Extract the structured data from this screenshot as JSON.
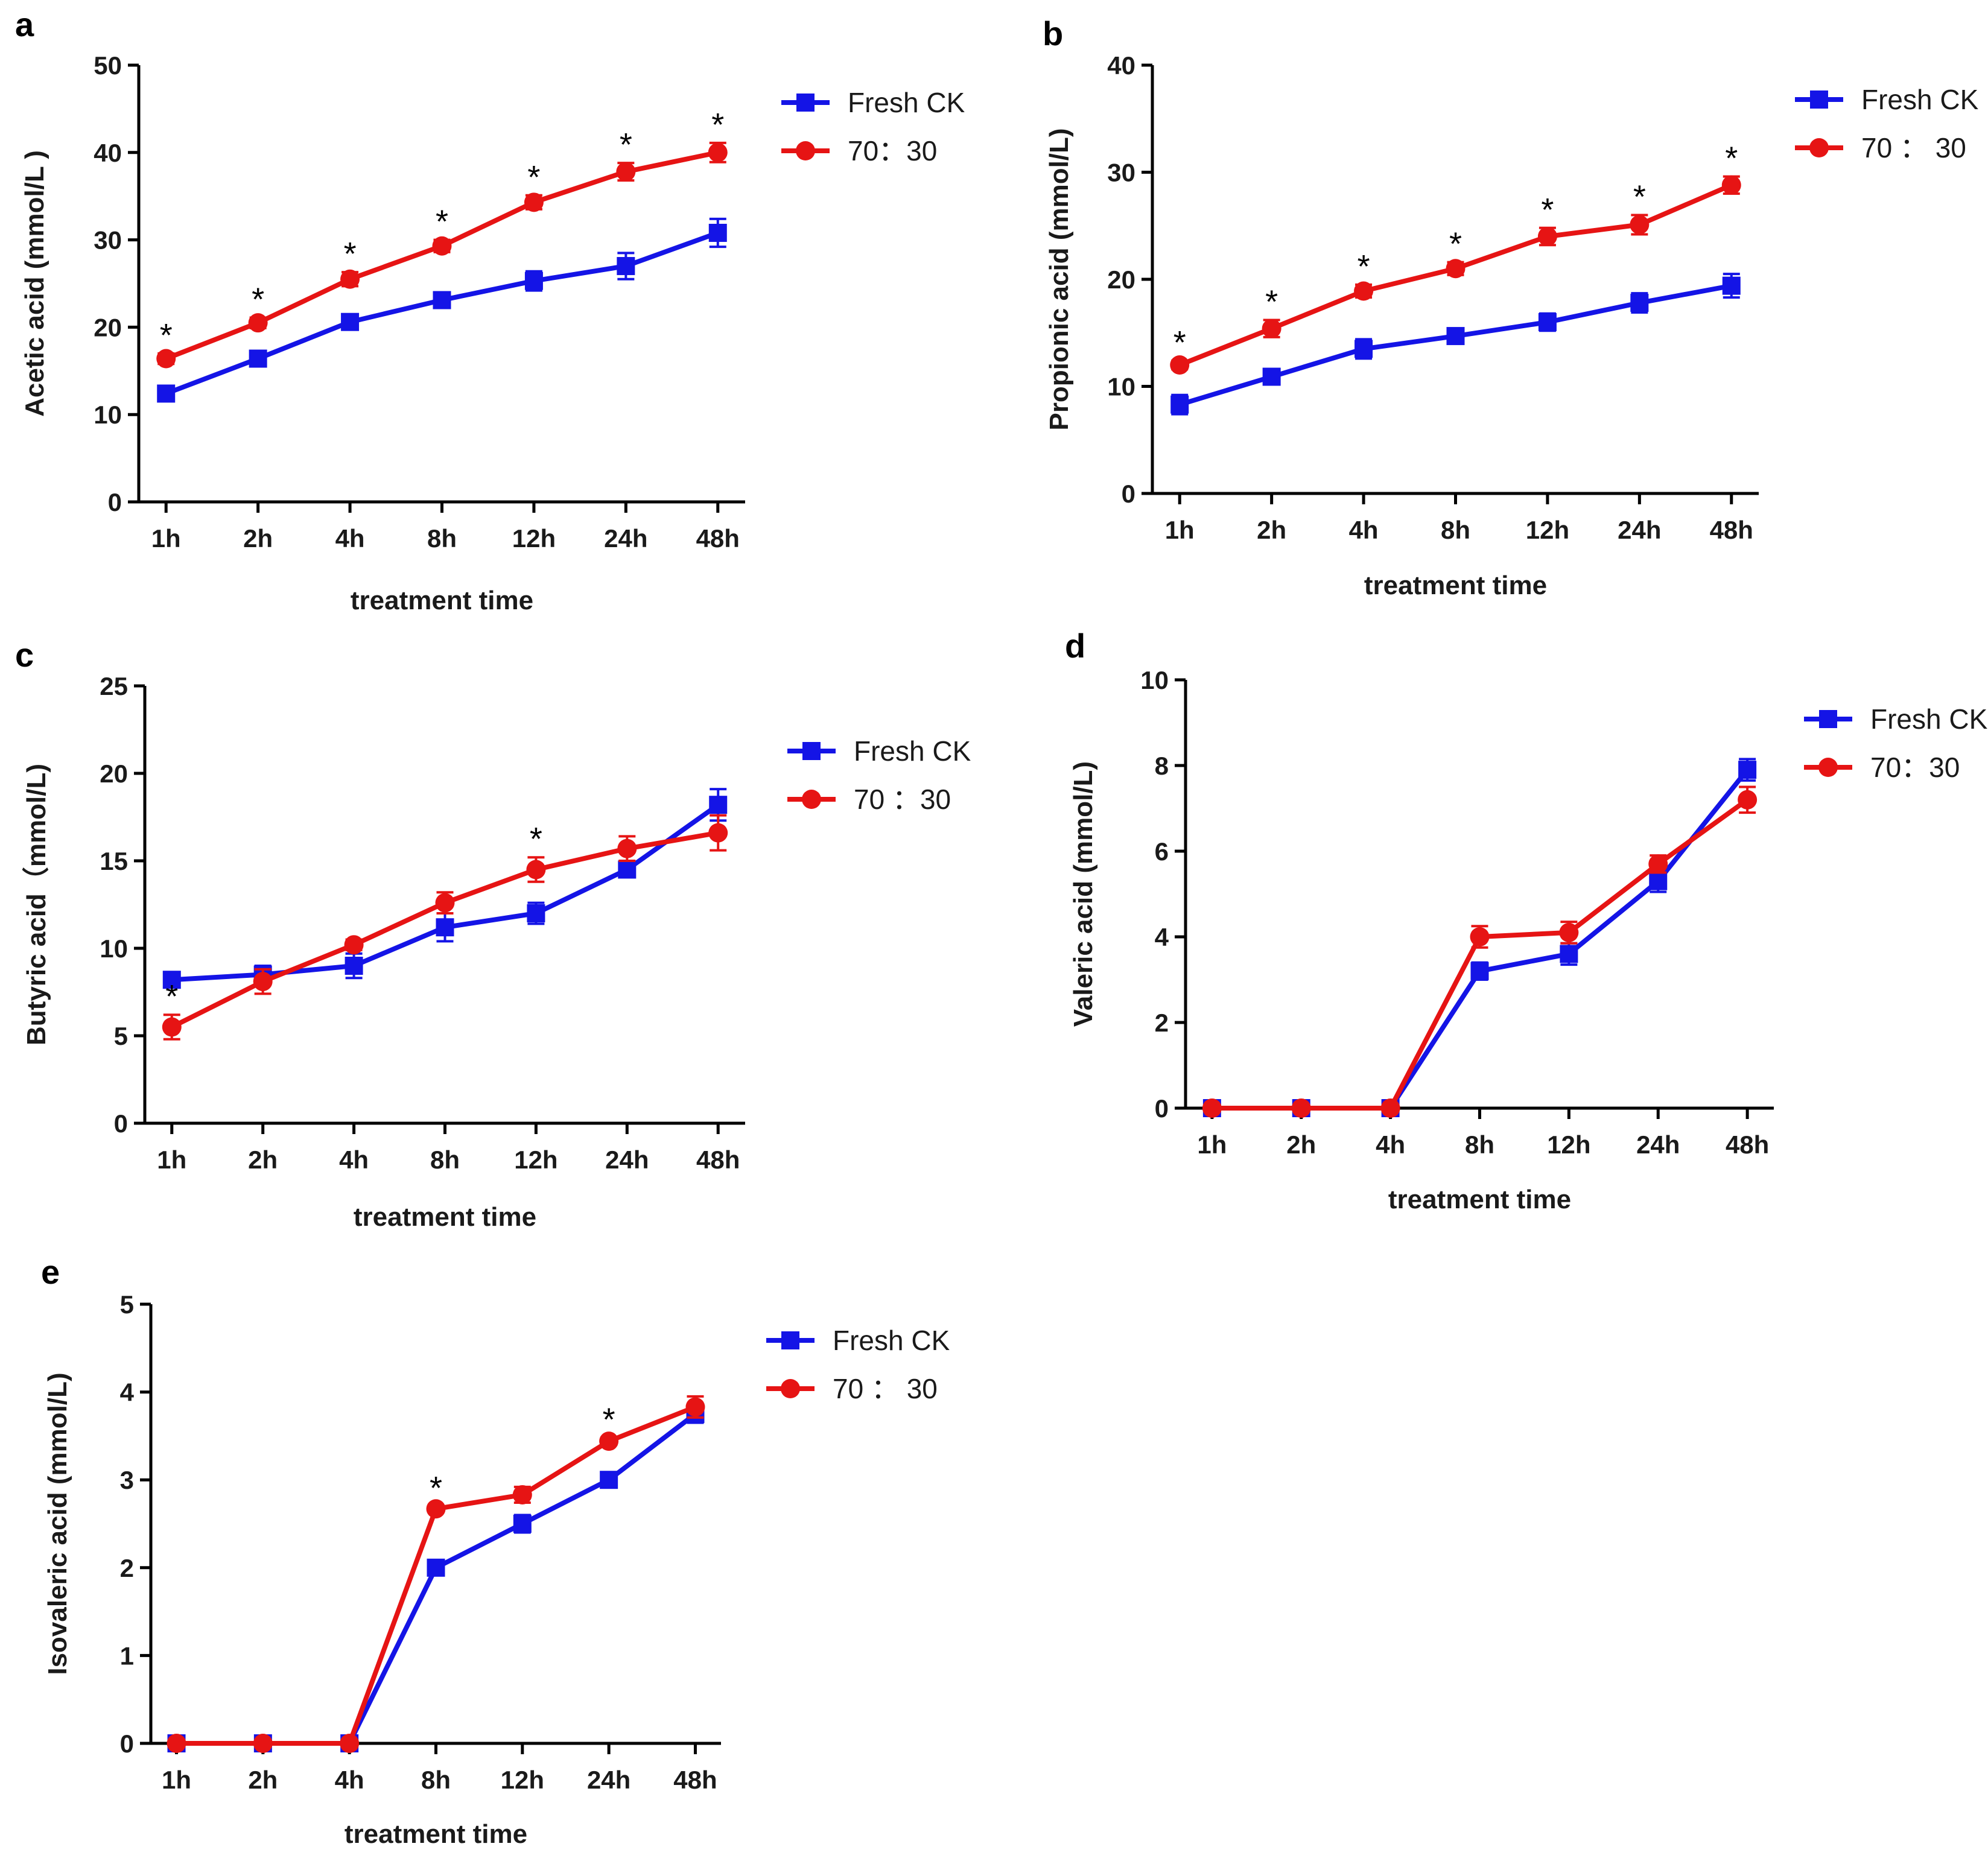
{
  "chart_data": [
    {
      "panel": "a",
      "type": "line",
      "xlabel": "treatment time",
      "ylabel": "Acetic acid (mmol/L )",
      "ylim": [
        0,
        50
      ],
      "yticks": [
        "0",
        "10",
        "20",
        "30",
        "40",
        "50"
      ],
      "categories": [
        "1h",
        "2h",
        "4h",
        "8h",
        "12h",
        "24h",
        "48h"
      ],
      "legend": {
        "position": "top-right"
      },
      "series": [
        {
          "name": "Fresh CK",
          "color": "#1414e6",
          "marker": "square",
          "values": [
            12.4,
            16.4,
            20.6,
            23.1,
            25.3,
            27.0,
            30.8
          ],
          "errors": [
            0.5,
            0.5,
            0.6,
            0.9,
            1.1,
            1.5,
            1.6
          ]
        },
        {
          "name": "70：30",
          "color": "#e61414",
          "marker": "circle",
          "values": [
            16.4,
            20.5,
            25.5,
            29.3,
            34.3,
            37.8,
            40.0
          ],
          "errors": [
            0.6,
            0.6,
            0.8,
            0.7,
            0.8,
            1.0,
            1.1
          ]
        }
      ],
      "significance": [
        "*",
        "*",
        "*",
        "*",
        "*",
        "*",
        "*"
      ]
    },
    {
      "panel": "b",
      "type": "line",
      "xlabel": "treatment time",
      "ylabel": "Propionic acid (mmol/L)",
      "ylim": [
        0,
        40
      ],
      "yticks": [
        "0",
        "10",
        "20",
        "30",
        "40"
      ],
      "categories": [
        "1h",
        "2h",
        "4h",
        "8h",
        "12h",
        "24h",
        "48h"
      ],
      "legend": {
        "position": "top-right"
      },
      "series": [
        {
          "name": "Fresh CK",
          "color": "#1414e6",
          "marker": "square",
          "values": [
            8.3,
            10.9,
            13.5,
            14.7,
            16.0,
            17.8,
            19.4
          ],
          "errors": [
            0.9,
            0.7,
            0.9,
            0.6,
            0.8,
            0.9,
            1.1
          ]
        },
        {
          "name": "70 ： 30",
          "color": "#e61414",
          "marker": "circle",
          "values": [
            12.0,
            15.4,
            18.9,
            21.0,
            24.0,
            25.1,
            28.8
          ],
          "errors": [
            0.4,
            0.8,
            0.6,
            0.6,
            0.8,
            0.9,
            0.8
          ]
        }
      ],
      "significance": [
        "*",
        "*",
        "*",
        "*",
        "*",
        "*",
        "*"
      ]
    },
    {
      "panel": "c",
      "type": "line",
      "xlabel": "treatment time",
      "ylabel": "Butyric acid（mmol/L)",
      "ylim": [
        0,
        25
      ],
      "yticks": [
        "0",
        "5",
        "10",
        "15",
        "20",
        "25"
      ],
      "categories": [
        "1h",
        "2h",
        "4h",
        "8h",
        "12h",
        "24h",
        "48h"
      ],
      "legend": {
        "position": "top-right"
      },
      "series": [
        {
          "name": "Fresh CK",
          "color": "#1414e6",
          "marker": "square",
          "values": [
            8.2,
            8.5,
            9.0,
            11.2,
            12.0,
            14.5,
            18.2
          ],
          "errors": [
            0.3,
            0.5,
            0.7,
            0.8,
            0.6,
            0.4,
            0.9
          ]
        },
        {
          "name": "70  ：30",
          "color": "#e61414",
          "marker": "circle",
          "values": [
            5.5,
            8.1,
            10.2,
            12.6,
            14.5,
            15.7,
            16.6
          ],
          "errors": [
            0.7,
            0.7,
            0.3,
            0.6,
            0.7,
            0.7,
            1.0
          ]
        }
      ],
      "significance": [
        "*",
        "",
        "",
        "",
        "*",
        "",
        ""
      ]
    },
    {
      "panel": "d",
      "type": "line",
      "xlabel": "treatment time",
      "ylabel": "Valeric acid (mmol/L)",
      "ylim": [
        0,
        10
      ],
      "yticks": [
        "0",
        "2",
        "4",
        "6",
        "8",
        "10"
      ],
      "categories": [
        "1h",
        "2h",
        "4h",
        "8h",
        "12h",
        "24h",
        "48h"
      ],
      "legend": {
        "position": "top-right"
      },
      "series": [
        {
          "name": "Fresh CK",
          "color": "#1414e6",
          "marker": "square",
          "values": [
            0,
            0,
            0,
            3.2,
            3.6,
            5.3,
            7.9
          ],
          "errors": [
            0,
            0,
            0,
            0.2,
            0.25,
            0.25,
            0.25
          ]
        },
        {
          "name": "70：30",
          "color": "#e61414",
          "marker": "circle",
          "values": [
            0,
            0,
            0,
            4.0,
            4.1,
            5.7,
            7.2
          ],
          "errors": [
            0,
            0,
            0,
            0.25,
            0.25,
            0.2,
            0.3
          ]
        }
      ],
      "significance": [
        "",
        "",
        "",
        "",
        "",
        "",
        ""
      ]
    },
    {
      "panel": "e",
      "type": "line",
      "xlabel": "treatment time",
      "ylabel": "Isovaleric acid (mmol/L)",
      "ylim": [
        0,
        5
      ],
      "yticks": [
        "0",
        "1",
        "2",
        "3",
        "4",
        "5"
      ],
      "categories": [
        "1h",
        "2h",
        "4h",
        "8h",
        "12h",
        "24h",
        "48h"
      ],
      "legend": {
        "position": "top-right"
      },
      "series": [
        {
          "name": "Fresh CK",
          "color": "#1414e6",
          "marker": "square",
          "values": [
            0,
            0,
            0,
            2.0,
            2.5,
            3.0,
            3.75
          ],
          "errors": [
            0,
            0,
            0,
            0.05,
            0.1,
            0.04,
            0.1
          ]
        },
        {
          "name": "70  ： 30",
          "color": "#e61414",
          "marker": "circle",
          "values": [
            0,
            0,
            0,
            2.67,
            2.83,
            3.44,
            3.83
          ],
          "errors": [
            0,
            0,
            0,
            0.03,
            0.09,
            0.04,
            0.12
          ]
        }
      ],
      "significance": [
        "",
        "",
        "",
        "*",
        "",
        "*",
        ""
      ]
    }
  ]
}
